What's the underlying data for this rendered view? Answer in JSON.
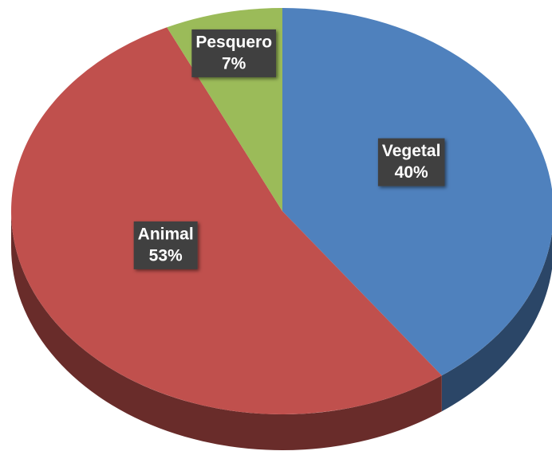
{
  "chart_data": {
    "type": "pie3d",
    "categories": [
      "Vegetal",
      "Animal",
      "Pesquero"
    ],
    "values": [
      40,
      53,
      7
    ],
    "value_labels": [
      "40%",
      "53%",
      "7%"
    ],
    "colors": [
      "#4f81bd",
      "#c0504d",
      "#9bbb59"
    ]
  }
}
